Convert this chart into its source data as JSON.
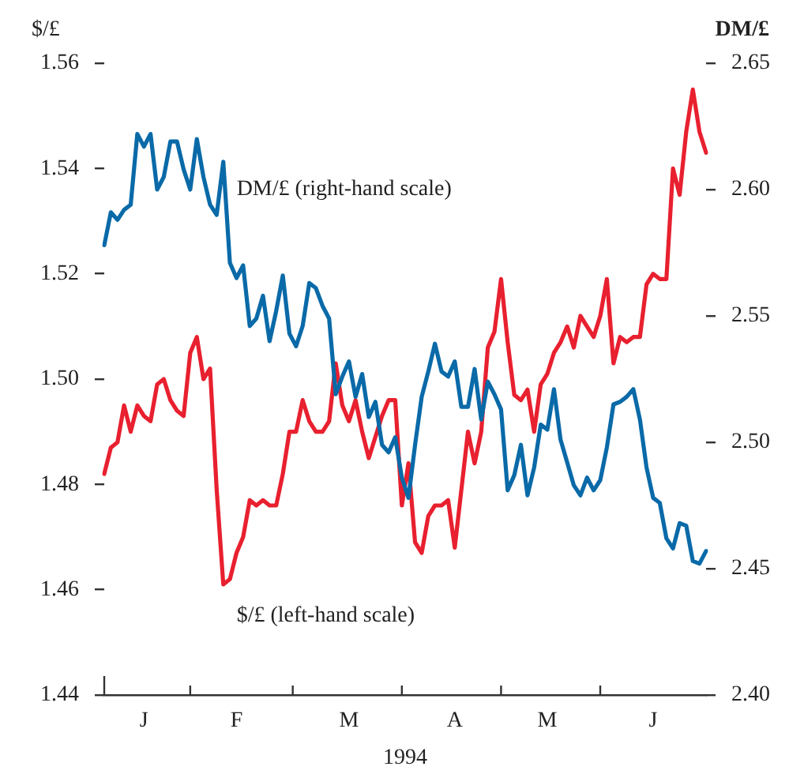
{
  "chart_data": {
    "type": "line",
    "xlabel": "1994",
    "ylabel": "$/£",
    "y2label": "DM/£",
    "legend": false,
    "grid": false,
    "marker": "none",
    "line_style": "solid",
    "categories": [
      null,
      null,
      null,
      null,
      null,
      null,
      "J",
      null,
      null,
      null,
      null,
      null,
      null,
      null,
      null,
      null,
      null,
      null,
      null,
      null,
      "F",
      null,
      null,
      null,
      null,
      null,
      null,
      null,
      null,
      null,
      null,
      null,
      null,
      null,
      null,
      null,
      null,
      "M",
      null,
      null,
      null,
      null,
      null,
      null,
      null,
      null,
      null,
      null,
      null,
      null,
      null,
      null,
      null,
      "A",
      null,
      null,
      null,
      null,
      null,
      null,
      null,
      null,
      null,
      null,
      null,
      null,
      null,
      "M",
      null,
      null,
      null,
      null,
      null,
      null,
      null,
      null,
      null,
      null,
      null,
      null,
      null,
      null,
      null,
      "J",
      null,
      null,
      null,
      null,
      null,
      null,
      null,
      null
    ],
    "ylim": [
      1.44,
      1.56
    ],
    "yticks": [
      1.44,
      1.46,
      1.48,
      {
        "value": 1.5,
        "label": "1.50"
      },
      1.52,
      1.54,
      1.56
    ],
    "y2lim": [
      2.4,
      2.65
    ],
    "y2ticks": [
      {
        "value": 2.4,
        "label": "2.40"
      },
      2.45,
      {
        "value": 2.5,
        "label": "2.50"
      },
      2.55,
      {
        "value": 2.6,
        "label": "2.60"
      },
      2.65
    ],
    "series": [
      {
        "name": "DM/£ (right-hand scale)",
        "color": "#0a6aa8",
        "axis": "y2",
        "values": [
          2.578,
          2.591,
          2.588,
          2.592,
          2.594,
          2.622,
          2.617,
          2.622,
          2.6,
          2.605,
          2.619,
          2.619,
          2.608,
          2.6,
          2.62,
          2.605,
          2.594,
          2.59,
          2.611,
          2.571,
          2.565,
          2.57,
          2.546,
          2.549,
          2.558,
          2.54,
          2.552,
          2.566,
          2.543,
          2.538,
          2.546,
          2.563,
          2.561,
          2.554,
          2.549,
          2.519,
          2.526,
          2.532,
          2.518,
          2.527,
          2.51,
          2.516,
          2.499,
          2.496,
          2.502,
          2.486,
          2.478,
          2.499,
          2.518,
          2.528,
          2.539,
          2.528,
          2.526,
          2.532,
          2.514,
          2.514,
          2.529,
          2.509,
          2.524,
          2.519,
          2.513,
          2.481,
          2.487,
          2.499,
          2.479,
          2.49,
          2.507,
          2.505,
          2.521,
          2.501,
          2.492,
          2.483,
          2.479,
          2.486,
          2.481,
          2.485,
          2.498,
          2.515,
          2.516,
          2.518,
          2.521,
          2.509,
          2.49,
          2.478,
          2.476,
          2.462,
          2.458,
          2.468,
          2.467,
          2.453,
          2.452,
          2.457
        ]
      },
      {
        "name": "$/£ (left-hand scale)",
        "color": "#e8202f",
        "values": [
          1.482,
          1.487,
          1.488,
          1.495,
          1.49,
          1.495,
          1.493,
          1.492,
          1.499,
          1.5,
          1.496,
          1.494,
          1.493,
          1.505,
          1.508,
          1.5,
          1.502,
          1.479,
          1.461,
          1.462,
          1.467,
          1.47,
          1.477,
          1.476,
          1.477,
          1.476,
          1.476,
          1.482,
          1.49,
          1.49,
          1.496,
          1.492,
          1.49,
          1.49,
          1.492,
          1.503,
          1.495,
          1.492,
          1.496,
          1.49,
          1.485,
          1.489,
          1.493,
          1.496,
          1.496,
          1.476,
          1.484,
          1.469,
          1.467,
          1.474,
          1.476,
          1.476,
          1.477,
          1.468,
          1.479,
          1.49,
          1.484,
          1.49,
          1.506,
          1.509,
          1.519,
          1.507,
          1.497,
          1.496,
          1.498,
          1.49,
          1.499,
          1.501,
          1.505,
          1.507,
          1.51,
          1.506,
          1.512,
          1.51,
          1.508,
          1.512,
          1.519,
          1.503,
          1.508,
          1.507,
          1.508,
          1.508,
          1.518,
          1.52,
          1.519,
          1.519,
          1.54,
          1.535,
          1.547,
          1.555,
          1.547,
          1.543
        ]
      }
    ]
  }
}
